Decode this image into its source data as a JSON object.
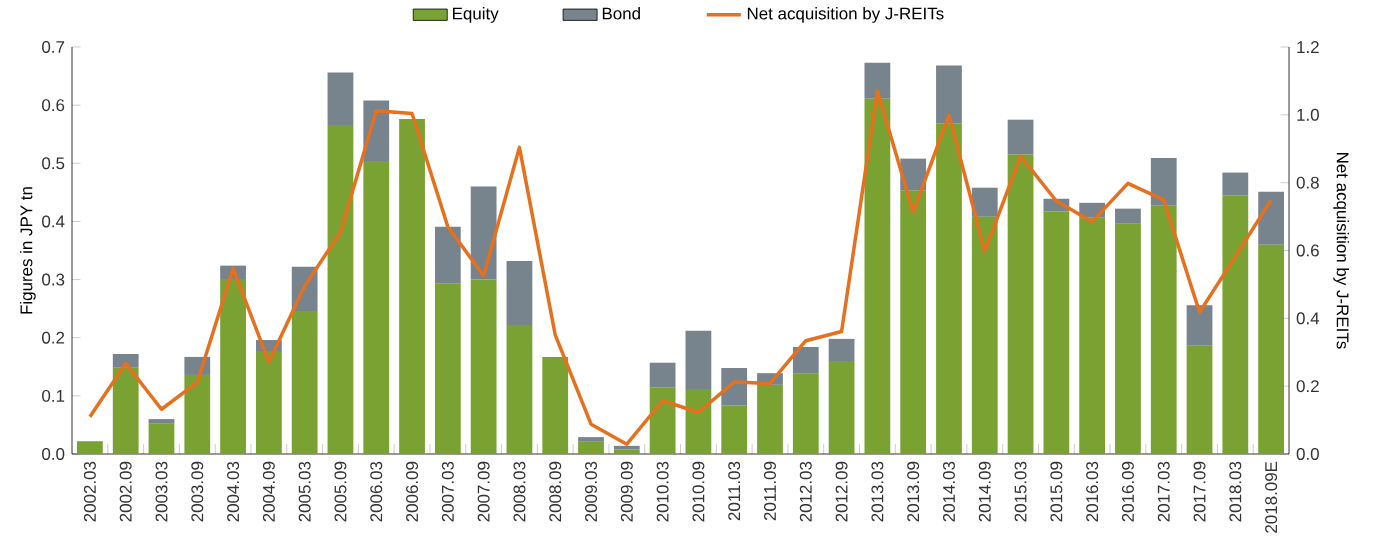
{
  "chart_data": {
    "type": "bar",
    "stacked": true,
    "legend": "top",
    "categories": [
      "2002.03",
      "2002.09",
      "2003.03",
      "2003.09",
      "2004.03",
      "2004.09",
      "2005.03",
      "2005.09",
      "2006.03",
      "2006.09",
      "2007.03",
      "2007.09",
      "2008.03",
      "2008.09",
      "2009.03",
      "2009.09",
      "2010.03",
      "2010.09",
      "2011.03",
      "2011.09",
      "2012.03",
      "2012.09",
      "2013.03",
      "2013.09",
      "2014.03",
      "2014.09",
      "2015.03",
      "2015.09",
      "2016.03",
      "2016.09",
      "2017.03",
      "2017.09",
      "2018.03",
      "2018.09E"
    ],
    "series": [
      {
        "name": "Equity",
        "color": "#7aa232",
        "values": [
          0.022,
          0.149,
          0.052,
          0.136,
          0.301,
          0.177,
          0.246,
          0.566,
          0.504,
          0.576,
          0.293,
          0.3,
          0.222,
          0.167,
          0.021,
          0.008,
          0.114,
          0.112,
          0.084,
          0.119,
          0.138,
          0.16,
          0.611,
          0.453,
          0.569,
          0.408,
          0.515,
          0.417,
          0.407,
          0.396,
          0.427,
          0.186,
          0.445,
          0.36
        ]
      },
      {
        "name": "Bond",
        "color": "#77838d",
        "values": [
          0,
          0.023,
          0.008,
          0.031,
          0.023,
          0.019,
          0.076,
          0.09,
          0.104,
          0,
          0.098,
          0.16,
          0.11,
          0,
          0.008,
          0.006,
          0.043,
          0.1,
          0.064,
          0.02,
          0.046,
          0.038,
          0.062,
          0.055,
          0.099,
          0.05,
          0.06,
          0.022,
          0.025,
          0.026,
          0.082,
          0.07,
          0.039,
          0.091
        ]
      },
      {
        "name": "Net acquisition by J-REITs",
        "type": "line",
        "axis": "y2",
        "color": "#e5701e",
        "line_style": "solid",
        "values": [
          0.11,
          0.267,
          0.132,
          0.211,
          0.547,
          0.271,
          0.495,
          0.654,
          1.012,
          1.004,
          0.67,
          0.526,
          0.904,
          0.351,
          0.088,
          0.029,
          0.157,
          0.123,
          0.212,
          0.208,
          0.334,
          0.361,
          1.071,
          0.713,
          0.999,
          0.598,
          0.878,
          0.746,
          0.685,
          0.798,
          0.749,
          0.418,
          0.582,
          0.749
        ]
      }
    ],
    "ylabel": "Figures in JPY tn",
    "y2label": "Net acquisition by J-REITs",
    "ylim": [
      0,
      0.7
    ],
    "yticks": [
      {
        "value": 0,
        "label": "0.0"
      },
      0.1,
      0.2,
      0.3,
      0.4,
      0.5,
      0.6,
      0.7
    ],
    "y2lim": [
      0,
      1.2
    ],
    "y2ticks": [
      {
        "value": 0,
        "label": "0.0"
      },
      0.2,
      0.4,
      0.6,
      0.8,
      {
        "value": 1,
        "label": "1.0"
      },
      1.2
    ]
  }
}
